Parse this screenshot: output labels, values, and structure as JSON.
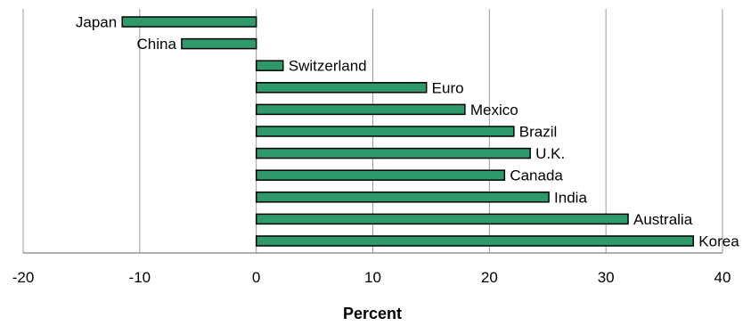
{
  "chart_data": {
    "type": "bar",
    "orientation": "horizontal",
    "title": "",
    "xlabel": "Percent",
    "ylabel": "",
    "xlim": [
      -20,
      40
    ],
    "xticks": [
      -20,
      -10,
      0,
      10,
      20,
      30,
      40
    ],
    "grid": "vertical",
    "bar_color": "#2e9a6b",
    "categories": [
      "Japan",
      "China",
      "Switzerland",
      "Euro",
      "Mexico",
      "Brazil",
      "U.K.",
      "Canada",
      "India",
      "Australia",
      "Korea"
    ],
    "values": [
      -11.5,
      -6.4,
      2.3,
      14.6,
      17.9,
      22.1,
      23.5,
      21.3,
      25.1,
      31.9,
      37.5
    ]
  }
}
